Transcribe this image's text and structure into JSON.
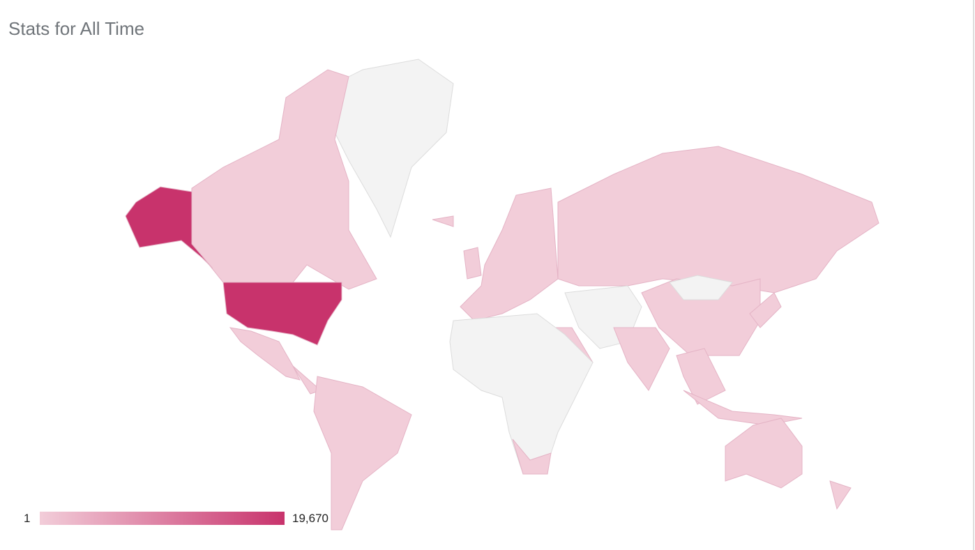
{
  "title": "Stats for All Time",
  "colors": {
    "min": "#f2cdd9",
    "max": "#c8336c",
    "no_data": "#f3f3f3",
    "border": "#dcdcdc"
  },
  "legend": {
    "min": "1",
    "max": "19,670"
  },
  "regions": [
    {
      "name": "United States",
      "shade": "max"
    },
    {
      "name": "Canada",
      "shade": "low"
    },
    {
      "name": "Mexico",
      "shade": "low"
    },
    {
      "name": "Brazil",
      "shade": "low"
    },
    {
      "name": "Russia",
      "shade": "low"
    },
    {
      "name": "China",
      "shade": "low"
    },
    {
      "name": "India",
      "shade": "low"
    },
    {
      "name": "Australia",
      "shade": "low"
    },
    {
      "name": "Europe",
      "shade": "low"
    },
    {
      "name": "Greenland",
      "shade": "none"
    },
    {
      "name": "Mongolia",
      "shade": "none"
    }
  ]
}
